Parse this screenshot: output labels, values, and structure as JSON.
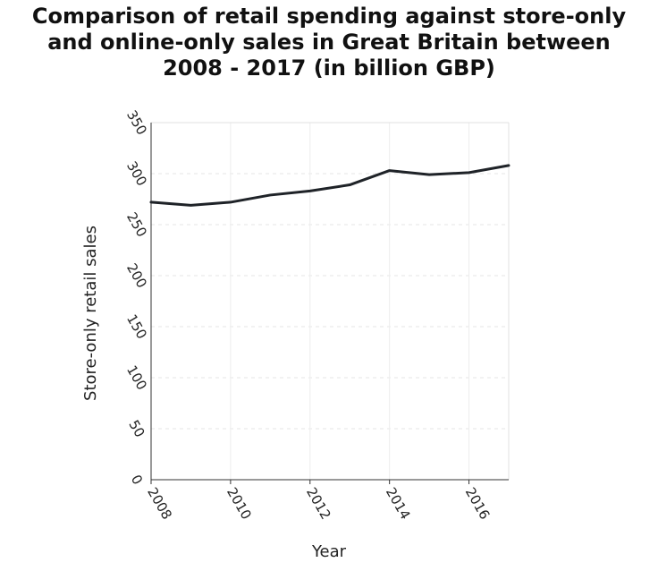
{
  "chart_data": {
    "type": "line",
    "title_lines": [
      "Comparison of retail spending against store-only",
      "and online-only sales in Great Britain between",
      "2008 - 2017 (in billion GBP)"
    ],
    "xlabel": "Year",
    "ylabel": "Store-only retail sales",
    "x": [
      2008,
      2009,
      2010,
      2011,
      2012,
      2013,
      2014,
      2015,
      2016,
      2017
    ],
    "y": [
      272,
      269,
      272,
      279,
      283,
      289,
      303,
      299,
      301,
      308
    ],
    "xlim": [
      2008,
      2017
    ],
    "ylim": [
      0,
      350
    ],
    "xticks": [
      "2008",
      "2010",
      "2012",
      "2014",
      "2016"
    ],
    "yticks": [
      "0",
      "50",
      "100",
      "150",
      "200",
      "250",
      "300",
      "350"
    ],
    "grid": true,
    "line_color": "#1f2328"
  }
}
